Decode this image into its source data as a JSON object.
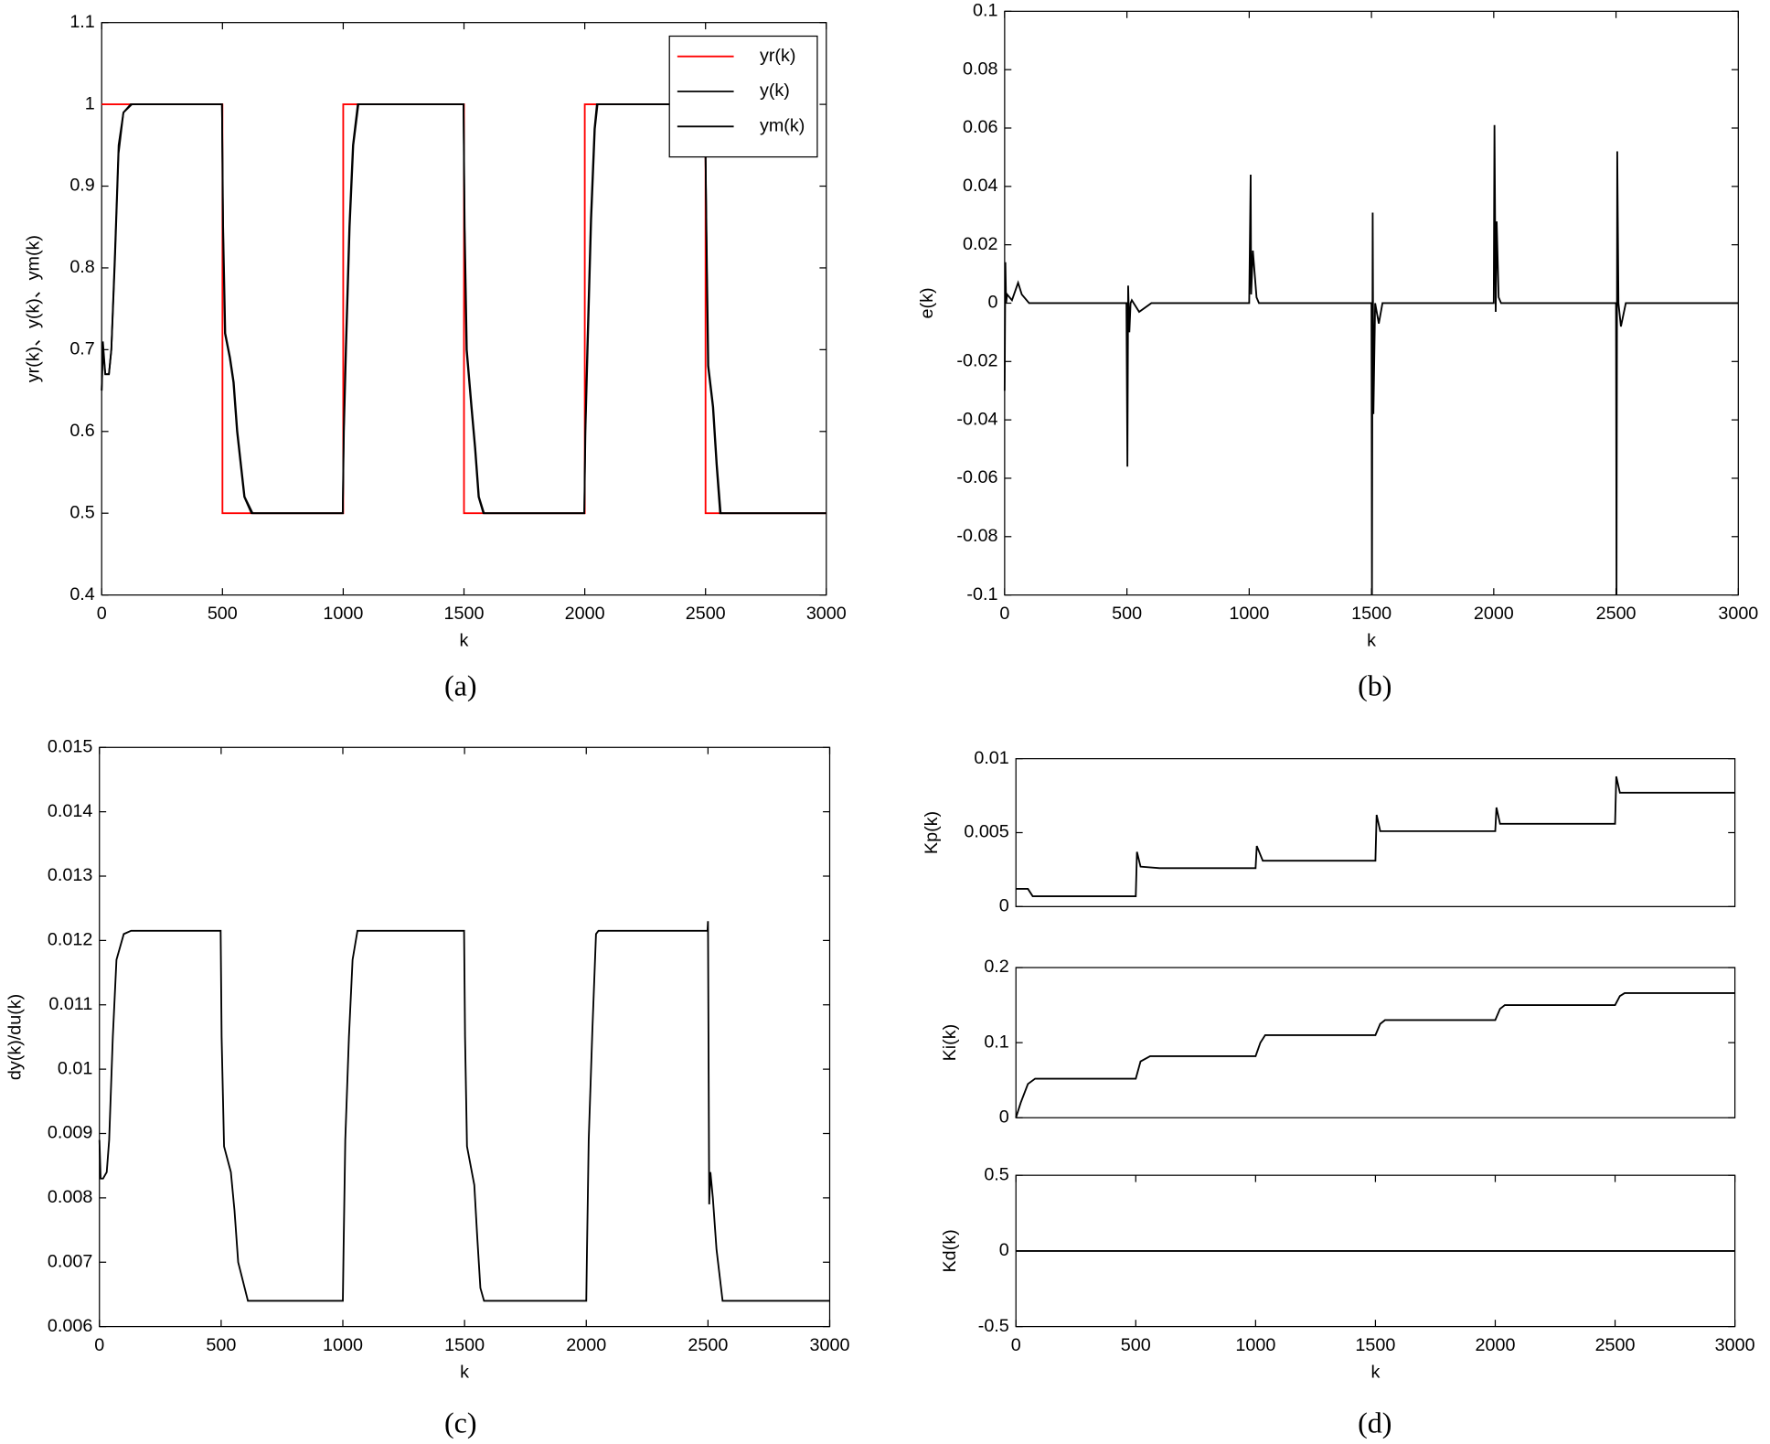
{
  "chart_data": [
    {
      "type": "line",
      "caption": "(a)",
      "xlabel": "k",
      "ylabel": "yr(k)、y(k)、ym(k)",
      "xlim": [
        0,
        3000
      ],
      "xticks": [
        0,
        500,
        1000,
        1500,
        2000,
        2500,
        3000
      ],
      "ylim": [
        0.4,
        1.1
      ],
      "yticks": [
        0.4,
        0.5,
        0.6,
        0.7,
        0.8,
        0.9,
        1,
        1.1
      ],
      "legend": "upper right",
      "series": [
        {
          "name": "yr(k)",
          "color": "#ff0000",
          "x": [
            0,
            500,
            500,
            1000,
            1000,
            1500,
            1500,
            2000,
            2000,
            2500,
            2500,
            3000
          ],
          "values": [
            1,
            1,
            0.5,
            0.5,
            1,
            1,
            0.5,
            0.5,
            1,
            1,
            0.5,
            0.5
          ]
        },
        {
          "name": "y(k)",
          "color": "#000000",
          "x": [
            0,
            5,
            15,
            30,
            40,
            55,
            70,
            90,
            120,
            498,
            502,
            510,
            530,
            545,
            560,
            590,
            620,
            998,
            1002,
            1010,
            1025,
            1040,
            1060,
            1498,
            1502,
            1510,
            1530,
            1545,
            1560,
            1580,
            1998,
            2002,
            2010,
            2025,
            2040,
            2050,
            2498,
            2500,
            2505,
            2510,
            2530,
            2545,
            2560,
            3000
          ],
          "values": [
            0.65,
            0.71,
            0.67,
            0.67,
            0.7,
            0.82,
            0.95,
            0.99,
            1,
            1,
            0.85,
            0.72,
            0.69,
            0.66,
            0.6,
            0.52,
            0.5,
            0.5,
            0.6,
            0.7,
            0.85,
            0.95,
            1,
            1,
            0.85,
            0.7,
            0.63,
            0.58,
            0.52,
            0.5,
            0.5,
            0.6,
            0.7,
            0.86,
            0.97,
            1,
            1,
            0.94,
            0.8,
            0.68,
            0.63,
            0.56,
            0.5,
            0.5
          ]
        },
        {
          "name": "ym(k)",
          "color": "#000000",
          "x": [
            0,
            5,
            15,
            30,
            40,
            55,
            70,
            90,
            125,
            498,
            503,
            512,
            532,
            547,
            562,
            592,
            625,
            998,
            1003,
            1012,
            1027,
            1042,
            1063,
            1498,
            1503,
            1512,
            1532,
            1547,
            1562,
            1583,
            1998,
            2003,
            2012,
            2027,
            2042,
            2053,
            2498,
            2500,
            2506,
            2512,
            2532,
            2547,
            2563,
            3000
          ],
          "values": [
            0.65,
            0.7,
            0.67,
            0.67,
            0.7,
            0.81,
            0.94,
            0.99,
            1,
            1,
            0.85,
            0.72,
            0.69,
            0.66,
            0.6,
            0.52,
            0.5,
            0.5,
            0.6,
            0.7,
            0.85,
            0.95,
            1,
            1,
            0.85,
            0.7,
            0.63,
            0.58,
            0.52,
            0.5,
            0.5,
            0.6,
            0.7,
            0.86,
            0.97,
            1,
            1,
            0.94,
            0.8,
            0.68,
            0.63,
            0.56,
            0.5,
            0.5
          ]
        }
      ]
    },
    {
      "type": "line",
      "caption": "(b)",
      "xlabel": "k",
      "ylabel": "e(k)",
      "xlim": [
        0,
        3000
      ],
      "xticks": [
        0,
        500,
        1000,
        1500,
        2000,
        2500,
        3000
      ],
      "ylim": [
        -0.1,
        0.1
      ],
      "yticks": [
        -0.1,
        -0.08,
        -0.06,
        -0.04,
        -0.02,
        0,
        0.02,
        0.04,
        0.06,
        0.08,
        0.1
      ],
      "series": [
        {
          "name": "e(k)",
          "color": "#000000",
          "x": [
            0,
            3,
            6,
            10,
            30,
            55,
            70,
            100,
            498,
            502,
            505,
            510,
            515,
            520,
            550,
            600,
            1000,
            1006,
            1008,
            1015,
            1030,
            1040,
            1500,
            1502,
            1505,
            1508,
            1515,
            1530,
            1545,
            2000,
            2003,
            2008,
            2012,
            2020,
            2030,
            2500,
            2502,
            2505,
            2510,
            2520,
            2540,
            3000
          ],
          "values": [
            -0.03,
            0.014,
            0,
            0.003,
            0.001,
            0.007,
            0.003,
            0,
            0,
            -0.056,
            0.006,
            -0.01,
            0,
            0.001,
            -0.003,
            0,
            0,
            0.044,
            0.003,
            0.018,
            0.002,
            0,
            0,
            -0.1,
            0.031,
            -0.038,
            0,
            -0.007,
            0,
            0,
            0.061,
            -0.003,
            0.028,
            0.002,
            0,
            0,
            -0.1,
            0.052,
            0,
            -0.008,
            0,
            0
          ]
        }
      ]
    },
    {
      "type": "line",
      "caption": "(c)",
      "xlabel": "k",
      "ylabel": "dy(k)/du(k)",
      "xlim": [
        0,
        3000
      ],
      "xticks": [
        0,
        500,
        1000,
        1500,
        2000,
        2500,
        3000
      ],
      "ylim": [
        0.006,
        0.015
      ],
      "yticks": [
        0.006,
        0.007,
        0.008,
        0.009,
        0.01,
        0.011,
        0.012,
        0.013,
        0.014,
        0.015
      ],
      "series": [
        {
          "name": "dy(k)/du(k)",
          "color": "#000000",
          "x": [
            0,
            5,
            15,
            30,
            40,
            55,
            70,
            100,
            130,
            498,
            502,
            512,
            540,
            555,
            570,
            610,
            1000,
            1003,
            1010,
            1025,
            1040,
            1060,
            1498,
            1502,
            1510,
            1540,
            1552,
            1565,
            1580,
            2000,
            2003,
            2010,
            2025,
            2040,
            2050,
            2498,
            2500,
            2505,
            2510,
            2520,
            2535,
            2560,
            3000
          ],
          "values": [
            0.0089,
            0.0083,
            0.0083,
            0.0084,
            0.0089,
            0.0105,
            0.0117,
            0.0121,
            0.01215,
            0.01215,
            0.0105,
            0.0088,
            0.0084,
            0.0078,
            0.007,
            0.0064,
            0.0064,
            0.0072,
            0.0089,
            0.0105,
            0.0117,
            0.01215,
            0.01215,
            0.0105,
            0.0088,
            0.0082,
            0.0074,
            0.0066,
            0.0064,
            0.0064,
            0.0072,
            0.0089,
            0.0106,
            0.0121,
            0.01215,
            0.01215,
            0.0123,
            0.0079,
            0.0084,
            0.008,
            0.0072,
            0.0064,
            0.0064
          ]
        }
      ]
    },
    {
      "type": "line",
      "ylabel": "Kp(k)",
      "xlim": [
        0,
        3000
      ],
      "ylim": [
        0,
        0.01
      ],
      "yticks": [
        0,
        0.005,
        0.01
      ],
      "series": [
        {
          "name": "Kp(k)",
          "color": "#000000",
          "x": [
            0,
            50,
            70,
            500,
            505,
            520,
            600,
            1000,
            1005,
            1030,
            1500,
            1505,
            1520,
            2000,
            2005,
            2020,
            2500,
            2505,
            2520,
            3000
          ],
          "values": [
            0.0012,
            0.0012,
            0.0007,
            0.0007,
            0.0037,
            0.0027,
            0.0026,
            0.0026,
            0.0041,
            0.0031,
            0.0031,
            0.0062,
            0.0051,
            0.0051,
            0.0067,
            0.0056,
            0.0056,
            0.0088,
            0.0077,
            0.0077
          ]
        }
      ]
    },
    {
      "type": "line",
      "ylabel": "Ki(k)",
      "xlim": [
        0,
        3000
      ],
      "ylim": [
        0,
        0.2
      ],
      "yticks": [
        0,
        0.1,
        0.2
      ],
      "series": [
        {
          "name": "Ki(k)",
          "color": "#000000",
          "x": [
            0,
            20,
            50,
            80,
            500,
            520,
            560,
            1000,
            1020,
            1040,
            1500,
            1520,
            1540,
            2000,
            2020,
            2040,
            2500,
            2520,
            2540,
            3000
          ],
          "values": [
            0,
            0.02,
            0.045,
            0.052,
            0.052,
            0.075,
            0.082,
            0.082,
            0.1,
            0.11,
            0.11,
            0.125,
            0.13,
            0.13,
            0.145,
            0.15,
            0.15,
            0.162,
            0.166,
            0.166
          ]
        }
      ]
    },
    {
      "type": "line",
      "caption": "(d)",
      "xlabel": "k",
      "ylabel": "Kd(k)",
      "xlim": [
        0,
        3000
      ],
      "xticks": [
        0,
        500,
        1000,
        1500,
        2000,
        2500,
        3000
      ],
      "ylim": [
        -0.5,
        0.5
      ],
      "yticks": [
        -0.5,
        0,
        0.5
      ],
      "series": [
        {
          "name": "Kd(k)",
          "color": "#000000",
          "x": [
            0,
            3000
          ],
          "values": [
            0,
            0
          ]
        }
      ]
    }
  ]
}
